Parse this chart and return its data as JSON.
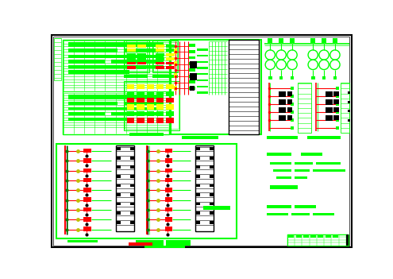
{
  "bg_color": "#ffffff",
  "green": "#00ff00",
  "red": "#ff0000",
  "black": "#000000",
  "yellow": "#ffff00",
  "fig_width": 4.95,
  "fig_height": 3.51,
  "dpi": 100
}
